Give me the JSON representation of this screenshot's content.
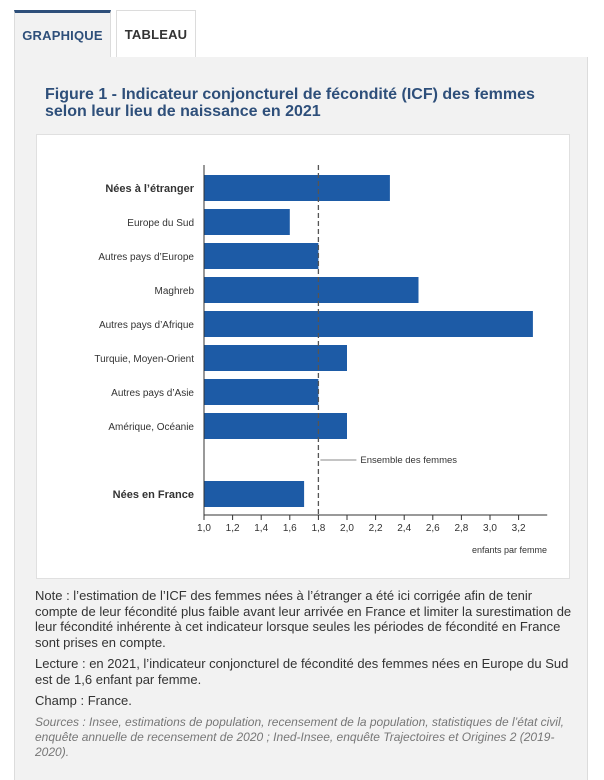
{
  "tabs": [
    {
      "label": "GRAPHIQUE",
      "active": true
    },
    {
      "label": "TABLEAU",
      "active": false
    }
  ],
  "figure_title": "Figure 1 - Indicateur conjoncturel de fécondité (ICF) des femmes selon leur lieu de naissance en 2021",
  "chart_data": {
    "type": "bar",
    "orientation": "horizontal",
    "categories": [
      "Nées à l’étranger",
      "Europe du Sud",
      "Autres pays d’Europe",
      "Maghreb",
      "Autres pays d’Afrique",
      "Turquie, Moyen-Orient",
      "Autres pays d’Asie",
      "Amérique, Océanie",
      "Nées en France"
    ],
    "bold_categories": [
      "Nées à l’étranger",
      "Nées en France"
    ],
    "values": [
      2.3,
      1.6,
      1.8,
      2.5,
      3.3,
      2.0,
      1.8,
      2.0,
      1.7
    ],
    "xlim": [
      1.0,
      3.4
    ],
    "xticks": [
      "1,0",
      "1,2",
      "1,4",
      "1,6",
      "1,8",
      "2,0",
      "2,2",
      "2,4",
      "2,6",
      "2,8",
      "3,0",
      "3,2"
    ],
    "xlabel": "enfants par femme",
    "reference_line": {
      "value": 1.8,
      "label": "Ensemble des femmes"
    },
    "bar_color": "#1d5ba6",
    "grid": false
  },
  "notes": {
    "note": "Note : l’estimation de l’ICF des femmes nées à l’étranger a été ici corrigée afin de tenir compte de leur fécondité plus faible avant leur arrivée en France et limiter la surestimation de leur fécondité inhérente à cet indicateur lorsque seules les périodes de fécondité en France sont prises en compte.",
    "lecture": "Lecture : en 2021, l’indicateur conjoncturel de fécondité des femmes nées en Europe du Sud est de 1,6 enfant par femme.",
    "champ": "Champ : France.",
    "sources": "Sources : Insee, estimations de population, recensement de la population, statistiques de l’état civil, enquête annuelle de recensement de 2020 ; Ined-Insee, enquête Trajectoires et Origines 2 (2019-2020)."
  }
}
